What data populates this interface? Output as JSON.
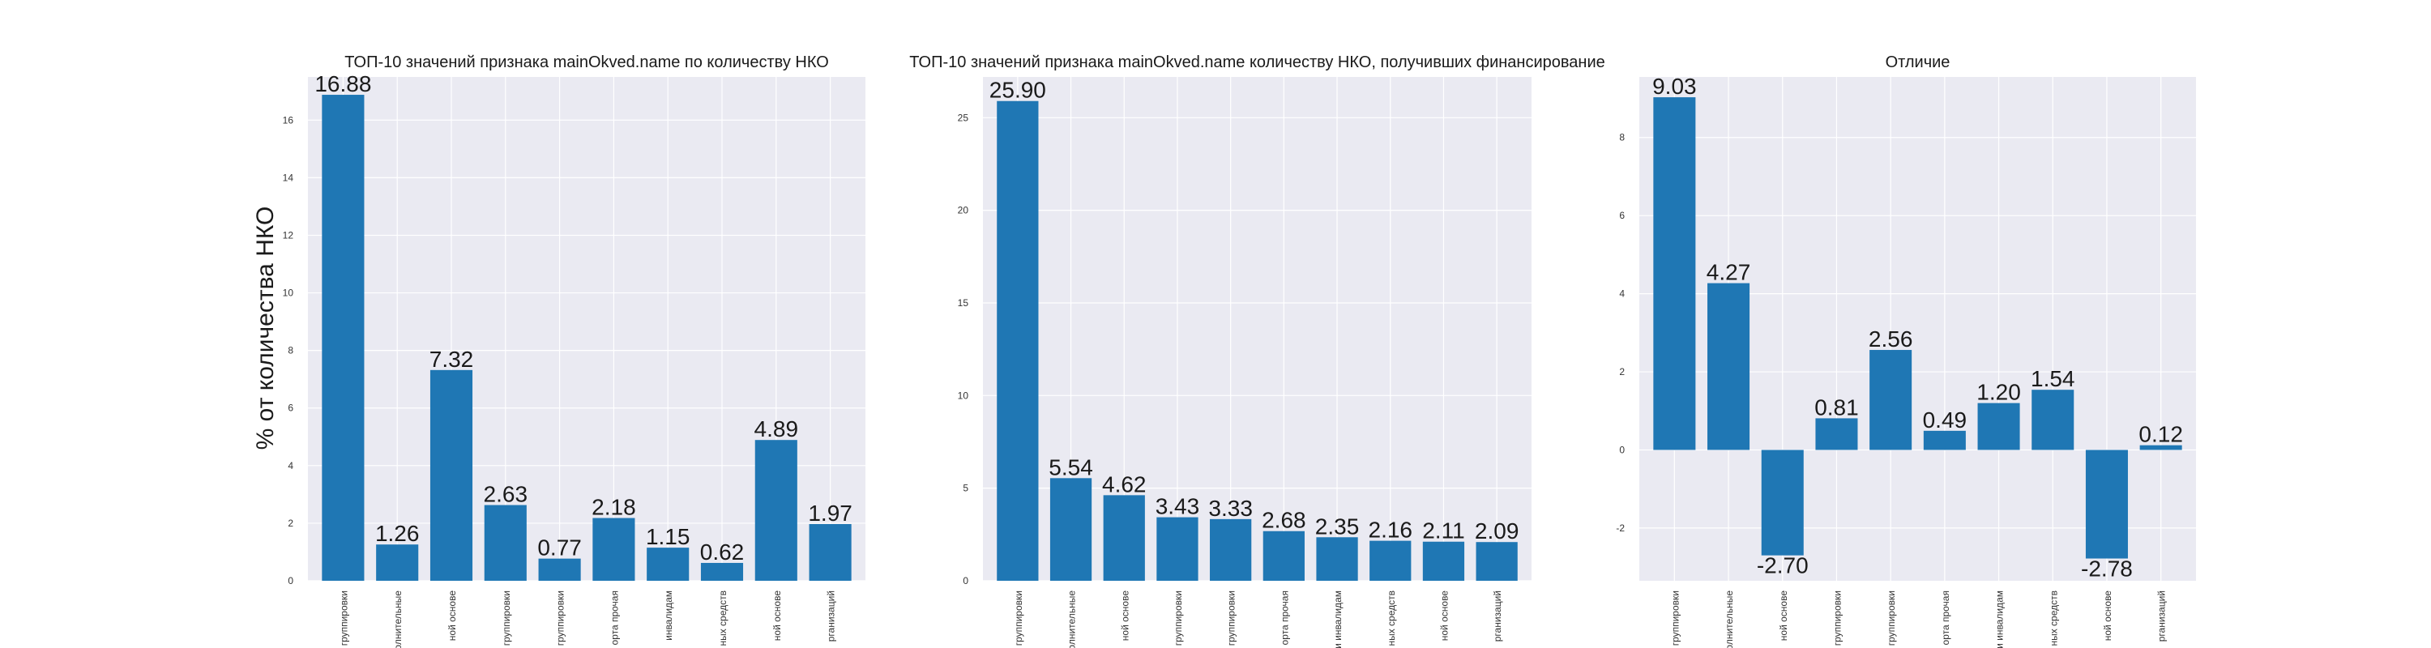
{
  "figure": {
    "ylabel": "% от количества НКО",
    "bar_color": "#1f77b4",
    "panel_bg": "#eaeaf2",
    "grid_color": "#ffffff"
  },
  "chart_data": [
    {
      "type": "bar",
      "title": "ТОП-10 значений признака mainOkved.name по количеству НКО",
      "xlabel": "",
      "ylabel": "% от количества НКО",
      "categories": [
        "группировки",
        "полнительные",
        "ной основе",
        "группировки",
        "группировки",
        "орта прочая",
        "инвалидам",
        "ных средств",
        "ной основе",
        "рганизаций"
      ],
      "values": [
        16.88,
        1.26,
        7.32,
        2.63,
        0.77,
        2.18,
        1.15,
        0.62,
        4.89,
        1.97
      ],
      "value_labels": [
        "16.88",
        "1.26",
        "7.32",
        "2.63",
        "0.77",
        "2.18",
        "1.15",
        "0.62",
        "4.89",
        "1.97"
      ],
      "yticks": [
        0,
        2,
        4,
        6,
        8,
        10,
        12,
        14,
        16
      ],
      "ylim": [
        0,
        17.5
      ],
      "grid": true
    },
    {
      "type": "bar",
      "title": "ТОП-10 значений признака mainOkved.name количеству НКО, получивших финансирование",
      "xlabel": "",
      "ylabel": "",
      "categories": [
        "группировки",
        "полнительные",
        "ной основе",
        "группировки",
        "группировки",
        "орта прочая",
        "и инвалидам",
        "ных средств",
        "ной основе",
        "рганизаций"
      ],
      "values": [
        25.9,
        5.54,
        4.62,
        3.43,
        3.33,
        2.68,
        2.35,
        2.16,
        2.11,
        2.09
      ],
      "value_labels": [
        "25.90",
        "5.54",
        "4.62",
        "3.43",
        "3.33",
        "2.68",
        "2.35",
        "2.16",
        "2.11",
        "2.09"
      ],
      "yticks": [
        0,
        5,
        10,
        15,
        20,
        25
      ],
      "ylim": [
        0,
        27.2
      ],
      "grid": true
    },
    {
      "type": "bar",
      "title": "Отличие",
      "xlabel": "",
      "ylabel": "",
      "categories": [
        "группировки",
        "полнительные",
        "ной основе",
        "группировки",
        "группировки",
        "орта прочая",
        "и инвалидам",
        "ных средств",
        "ной основе",
        "рганизаций"
      ],
      "values": [
        9.03,
        4.27,
        -2.7,
        0.81,
        2.56,
        0.49,
        1.2,
        1.54,
        -2.78,
        0.12
      ],
      "value_labels": [
        "9.03",
        "4.27",
        "-2.70",
        "0.81",
        "2.56",
        "0.49",
        "1.20",
        "1.54",
        "-2.78",
        "0.12"
      ],
      "yticks": [
        -2,
        0,
        2,
        4,
        6,
        8
      ],
      "ylim": [
        -3.35,
        9.55
      ],
      "grid": true
    }
  ]
}
